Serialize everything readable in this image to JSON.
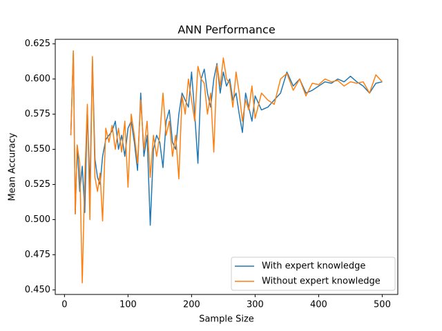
{
  "chart_data": {
    "type": "line",
    "title": "ANN Performance",
    "x_label": "Sample Size",
    "y_label": "Mean Accuracy",
    "x": [
      10,
      14,
      17,
      20,
      24,
      28,
      32,
      36,
      40,
      44,
      48,
      52,
      56,
      60,
      65,
      70,
      75,
      80,
      85,
      90,
      95,
      100,
      105,
      110,
      115,
      120,
      125,
      130,
      135,
      140,
      145,
      150,
      155,
      160,
      165,
      170,
      175,
      180,
      185,
      190,
      195,
      200,
      205,
      210,
      215,
      220,
      225,
      230,
      235,
      240,
      245,
      250,
      255,
      260,
      265,
      270,
      275,
      280,
      285,
      290,
      295,
      300,
      310,
      320,
      330,
      340,
      350,
      360,
      370,
      380,
      390,
      400,
      410,
      420,
      430,
      440,
      450,
      460,
      470,
      480,
      490,
      500
    ],
    "series": [
      {
        "name": "With expert knowledge",
        "color": "#1f77b4",
        "values": [
          0.56,
          0.62,
          0.504,
          0.553,
          0.52,
          0.538,
          0.505,
          0.58,
          0.52,
          0.614,
          0.543,
          0.53,
          0.525,
          0.545,
          0.557,
          0.56,
          0.563,
          0.57,
          0.55,
          0.56,
          0.545,
          0.565,
          0.57,
          0.555,
          0.535,
          0.59,
          0.545,
          0.56,
          0.496,
          0.55,
          0.56,
          0.555,
          0.537,
          0.57,
          0.578,
          0.555,
          0.55,
          0.575,
          0.59,
          0.585,
          0.58,
          0.605,
          0.575,
          0.54,
          0.6,
          0.607,
          0.59,
          0.58,
          0.6,
          0.611,
          0.59,
          0.605,
          0.595,
          0.6,
          0.585,
          0.59,
          0.575,
          0.562,
          0.59,
          0.58,
          0.57,
          0.588,
          0.578,
          0.58,
          0.585,
          0.59,
          0.605,
          0.595,
          0.6,
          0.59,
          0.592,
          0.595,
          0.598,
          0.597,
          0.6,
          0.598,
          0.602,
          0.598,
          0.595,
          0.59,
          0.597,
          0.598
        ]
      },
      {
        "name": "Without expert knowledge",
        "color": "#ff7f0e",
        "values": [
          0.56,
          0.62,
          0.504,
          0.553,
          0.54,
          0.455,
          0.53,
          0.582,
          0.5,
          0.616,
          0.53,
          0.52,
          0.533,
          0.499,
          0.565,
          0.555,
          0.567,
          0.55,
          0.565,
          0.548,
          0.57,
          0.523,
          0.575,
          0.56,
          0.54,
          0.585,
          0.55,
          0.57,
          0.53,
          0.56,
          0.545,
          0.56,
          0.59,
          0.56,
          0.57,
          0.545,
          0.56,
          0.529,
          0.588,
          0.575,
          0.6,
          0.585,
          0.57,
          0.609,
          0.6,
          0.597,
          0.575,
          0.59,
          0.548,
          0.61,
          0.595,
          0.615,
          0.6,
          0.597,
          0.58,
          0.605,
          0.59,
          0.57,
          0.585,
          0.578,
          0.595,
          0.572,
          0.59,
          0.585,
          0.582,
          0.6,
          0.604,
          0.592,
          0.6,
          0.588,
          0.597,
          0.596,
          0.6,
          0.598,
          0.599,
          0.595,
          0.598,
          0.597,
          0.598,
          0.59,
          0.603,
          0.598
        ]
      }
    ],
    "xlim": [
      -14.5,
      524.5
    ],
    "ylim": [
      0.44675,
      0.62825
    ],
    "xticks": [
      0,
      100,
      200,
      300,
      400,
      500
    ],
    "yticks": [
      {
        "value": 0.45,
        "label": "0.450"
      },
      0.475,
      {
        "value": 0.5,
        "label": "0.500"
      },
      0.525,
      {
        "value": 0.55,
        "label": "0.550"
      },
      0.575,
      {
        "value": 0.6,
        "label": "0.600"
      },
      0.625
    ],
    "legend": "lower right"
  }
}
